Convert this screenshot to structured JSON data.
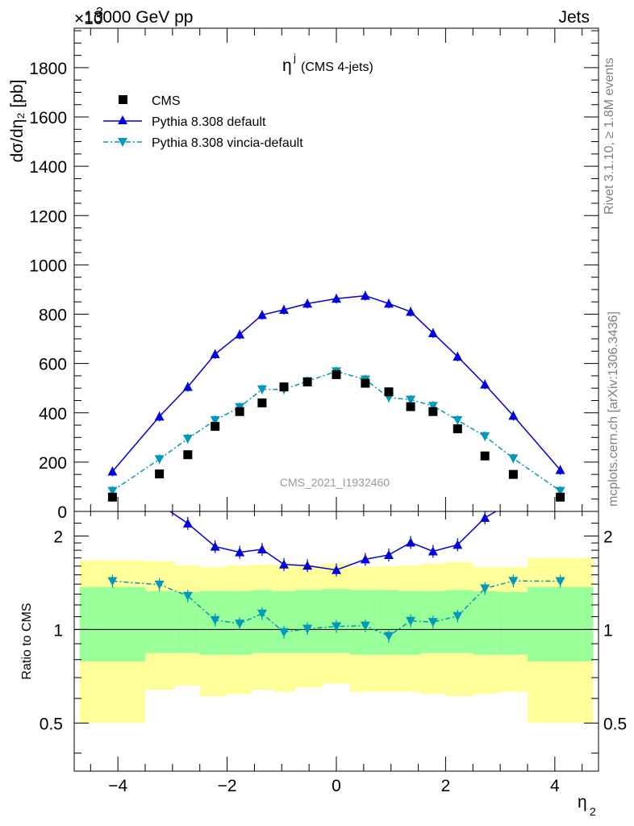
{
  "header": {
    "left": "13000 GeV pp",
    "right": "Jets",
    "exponent_times": "×10",
    "exponent_power": "3"
  },
  "title": {
    "main": "η",
    "sup": "j",
    "sub": "(CMS 4-jets)"
  },
  "side_labels": {
    "upper": "Rivet 3.1.10, ≥ 1.8M events",
    "lower": "mcplots.cern.ch [arXiv:1306.3436]"
  },
  "watermark": "CMS_2021_I1932460",
  "axes": {
    "main_ylabel": "dσ/dη₂ [pb]",
    "ratio_ylabel": "Ratio to CMS",
    "xlabel_main": "η",
    "xlabel_sub": "2",
    "x_ticks": [
      "−4",
      "−2",
      "0",
      "2",
      "4"
    ],
    "main_y_ticks": [
      "0",
      "200",
      "400",
      "600",
      "800",
      "1000",
      "1200",
      "1400",
      "1600",
      "1800"
    ],
    "ratio_y_ticks": [
      "0.5",
      "1",
      "2"
    ]
  },
  "legend": {
    "cms": "CMS",
    "default": "Pythia 8.308 default",
    "vincia": "Pythia 8.308 vincia-default"
  },
  "colors": {
    "cms": "#000000",
    "default": "#0000dd",
    "vincia": "#0099bb",
    "band_inner": "#99ff99",
    "band_outer": "#ffff99"
  },
  "chart_data": {
    "type": "scatter",
    "x_range": [
      -4.8,
      4.8
    ],
    "main_ylim": [
      0,
      1960
    ],
    "ratio_ylim": [
      0.35,
      2.4
    ],
    "ratio_scale": "log",
    "x": [
      -4.1,
      -3.24,
      -2.72,
      -2.22,
      -1.77,
      -1.36,
      -0.96,
      -0.53,
      0.0,
      0.53,
      0.96,
      1.36,
      1.77,
      2.22,
      2.72,
      3.24,
      4.1
    ],
    "series": [
      {
        "name": "CMS",
        "values": [
          58,
          152,
          230,
          345,
          405,
          440,
          505,
          525,
          555,
          520,
          485,
          425,
          405,
          335,
          225,
          150,
          58
        ]
      },
      {
        "name": "Pythia 8.308 default",
        "values": [
          162,
          385,
          505,
          638,
          718,
          797,
          818,
          843,
          863,
          875,
          843,
          810,
          723,
          628,
          515,
          388,
          168
        ]
      },
      {
        "name": "Pythia 8.308 vincia-default",
        "values": [
          83,
          212,
          295,
          370,
          423,
          495,
          495,
          528,
          568,
          535,
          462,
          453,
          428,
          370,
          305,
          215,
          83
        ]
      }
    ],
    "ratio_bands": {
      "edges": [
        -4.7,
        -3.5,
        -2.95,
        -2.5,
        -2.0,
        -1.55,
        -1.15,
        -0.75,
        -0.25,
        0.25,
        0.75,
        1.15,
        1.55,
        2.0,
        2.5,
        2.95,
        3.5,
        4.7
      ],
      "inner_lo": [
        0.79,
        0.84,
        0.84,
        0.83,
        0.83,
        0.84,
        0.84,
        0.84,
        0.84,
        0.83,
        0.83,
        0.83,
        0.84,
        0.84,
        0.83,
        0.83,
        0.79
      ],
      "inner_hi": [
        1.37,
        1.33,
        1.32,
        1.33,
        1.33,
        1.34,
        1.33,
        1.34,
        1.35,
        1.34,
        1.34,
        1.33,
        1.33,
        1.34,
        1.33,
        1.32,
        1.37
      ],
      "outer_lo": [
        0.5,
        0.64,
        0.66,
        0.61,
        0.62,
        0.64,
        0.63,
        0.65,
        0.67,
        0.63,
        0.63,
        0.63,
        0.62,
        0.61,
        0.62,
        0.63,
        0.5
      ],
      "outer_hi": [
        1.67,
        1.66,
        1.61,
        1.59,
        1.61,
        1.62,
        1.61,
        1.61,
        1.63,
        1.59,
        1.6,
        1.61,
        1.63,
        1.65,
        1.59,
        1.59,
        1.7
      ]
    }
  }
}
